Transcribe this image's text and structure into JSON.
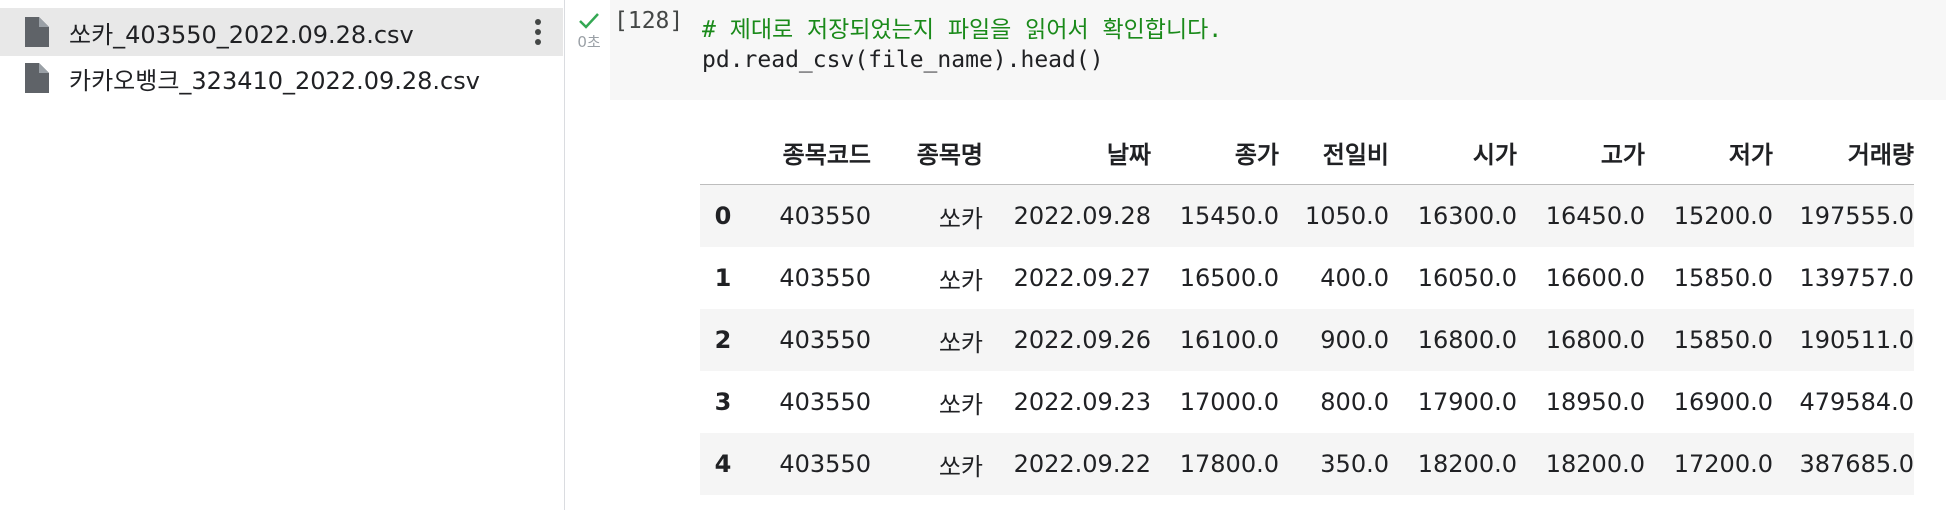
{
  "files": [
    {
      "name": "쏘카_403550_2022.09.28.csv",
      "selected": true
    },
    {
      "name": "카카오뱅크_323410_2022.09.28.csv",
      "selected": false
    }
  ],
  "cell": {
    "status_icon": "check-icon",
    "exec_time": "0초",
    "exec_count": "[128]",
    "code": {
      "comment": "# 제대로 저장되었는지 파일을 읽어서 확인합니다.",
      "line2": "pd.read_csv(file_name).head()"
    }
  },
  "output": {
    "columns": [
      "",
      "종목코드",
      "종목명",
      "날짜",
      "종가",
      "전일비",
      "시가",
      "고가",
      "저가",
      "거래량"
    ],
    "rows": [
      [
        "0",
        "403550",
        "쏘카",
        "2022.09.28",
        "15450.0",
        "1050.0",
        "16300.0",
        "16450.0",
        "15200.0",
        "197555.0"
      ],
      [
        "1",
        "403550",
        "쏘카",
        "2022.09.27",
        "16500.0",
        "400.0",
        "16050.0",
        "16600.0",
        "15850.0",
        "139757.0"
      ],
      [
        "2",
        "403550",
        "쏘카",
        "2022.09.26",
        "16100.0",
        "900.0",
        "16800.0",
        "16800.0",
        "15850.0",
        "190511.0"
      ],
      [
        "3",
        "403550",
        "쏘카",
        "2022.09.23",
        "17000.0",
        "800.0",
        "17900.0",
        "18950.0",
        "16900.0",
        "479584.0"
      ],
      [
        "4",
        "403550",
        "쏘카",
        "2022.09.22",
        "17800.0",
        "350.0",
        "18200.0",
        "18200.0",
        "17200.0",
        "387685.0"
      ]
    ]
  },
  "colors": {
    "selected_row": "#e8e8e8",
    "code_comment": "#1a8a1a",
    "check": "#34a853"
  }
}
